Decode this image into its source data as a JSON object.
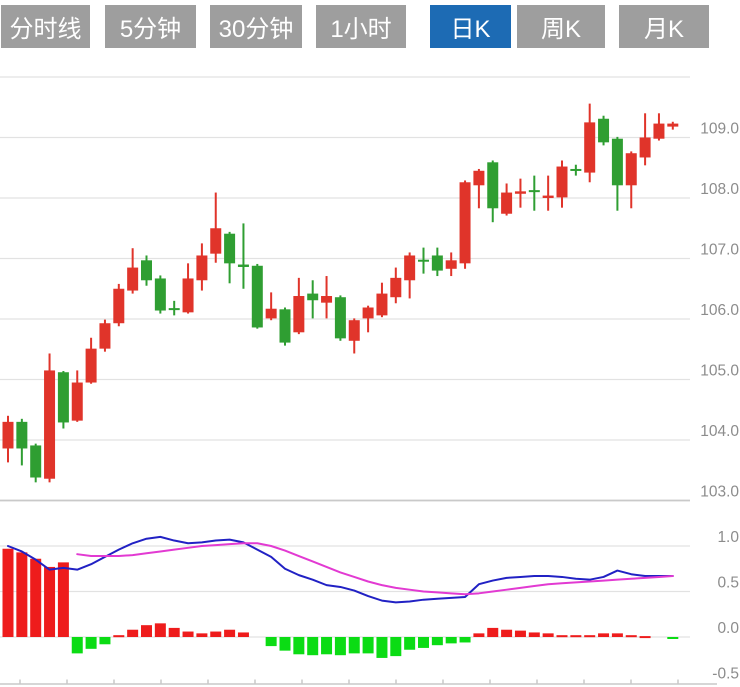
{
  "tabs": [
    {
      "label": "分时线",
      "active": false
    },
    {
      "label": "5分钟",
      "active": false
    },
    {
      "label": "30分钟",
      "active": false
    },
    {
      "label": "1小时",
      "active": false
    },
    {
      "label": "日K",
      "active": true
    },
    {
      "label": "周K",
      "active": false
    },
    {
      "label": "月K",
      "active": false
    }
  ],
  "colors": {
    "tab_inactive": "#9e9e9e",
    "tab_active": "#1d6bb4",
    "tab_text": "#ffffff",
    "up_red": "#e0342a",
    "down_green": "#2f9e32",
    "macd_up_red": "#ee1c1c",
    "macd_down_green": "#0bdc14",
    "dif_line_blue": "#2121c4",
    "dea_line_magenta": "#e23ad2",
    "grid": "#e2e2e2",
    "grid_dark": "#c9c9c9",
    "axis_label": "#8c8c8c",
    "background": "#ffffff"
  },
  "chart_data": {
    "type": "candlestick",
    "title": "",
    "legend": "none",
    "x_axis": {
      "labels_visible": false,
      "tick_count": 15
    },
    "price_axis": {
      "side": "right",
      "labels": [
        "109.0",
        "108.0",
        "107.0",
        "106.0",
        "105.0",
        "104.0",
        "103.0"
      ],
      "values": [
        109,
        108,
        107,
        106,
        105,
        104,
        103
      ],
      "extra_unlabeled_gridline": 110,
      "ylim": [
        102.7,
        110.3
      ]
    },
    "macd_axis": {
      "side": "right",
      "labels": [
        "1.0",
        "0.5",
        "0.0",
        "-0.5"
      ],
      "values": [
        1.0,
        0.5,
        0.0,
        -0.5
      ],
      "ylim": [
        -0.55,
        1.25
      ]
    },
    "candles": [
      {
        "o": 103.86,
        "h": 104.4,
        "l": 103.63,
        "c": 104.3,
        "d": "up"
      },
      {
        "o": 104.3,
        "h": 104.35,
        "l": 103.58,
        "c": 103.86,
        "d": "down"
      },
      {
        "o": 103.91,
        "h": 103.94,
        "l": 103.3,
        "c": 103.38,
        "d": "down"
      },
      {
        "o": 103.36,
        "h": 105.43,
        "l": 103.3,
        "c": 105.15,
        "d": "up"
      },
      {
        "o": 105.12,
        "h": 105.14,
        "l": 104.19,
        "c": 104.29,
        "d": "down"
      },
      {
        "o": 104.32,
        "h": 105.15,
        "l": 104.3,
        "c": 104.95,
        "d": "up"
      },
      {
        "o": 104.95,
        "h": 105.69,
        "l": 104.93,
        "c": 105.51,
        "d": "up"
      },
      {
        "o": 105.51,
        "h": 105.99,
        "l": 105.46,
        "c": 105.93,
        "d": "up"
      },
      {
        "o": 105.93,
        "h": 106.58,
        "l": 105.88,
        "c": 106.5,
        "d": "up"
      },
      {
        "o": 106.47,
        "h": 107.17,
        "l": 106.42,
        "c": 106.85,
        "d": "up"
      },
      {
        "o": 106.97,
        "h": 107.05,
        "l": 106.55,
        "c": 106.64,
        "d": "down"
      },
      {
        "o": 106.67,
        "h": 106.72,
        "l": 106.09,
        "c": 106.14,
        "d": "down"
      },
      {
        "o": 106.18,
        "h": 106.3,
        "l": 106.06,
        "c": 106.16,
        "d": "down"
      },
      {
        "o": 106.11,
        "h": 106.92,
        "l": 106.09,
        "c": 106.67,
        "d": "up"
      },
      {
        "o": 106.64,
        "h": 107.25,
        "l": 106.47,
        "c": 107.05,
        "d": "up"
      },
      {
        "o": 107.08,
        "h": 108.09,
        "l": 106.93,
        "c": 107.5,
        "d": "up"
      },
      {
        "o": 107.41,
        "h": 107.44,
        "l": 106.59,
        "c": 106.92,
        "d": "down"
      },
      {
        "o": 106.9,
        "h": 107.58,
        "l": 106.5,
        "c": 106.86,
        "d": "down"
      },
      {
        "o": 106.88,
        "h": 106.91,
        "l": 105.84,
        "c": 105.86,
        "d": "down"
      },
      {
        "o": 106.01,
        "h": 106.44,
        "l": 105.98,
        "c": 106.17,
        "d": "up"
      },
      {
        "o": 106.16,
        "h": 106.19,
        "l": 105.56,
        "c": 105.61,
        "d": "down"
      },
      {
        "o": 105.78,
        "h": 106.68,
        "l": 105.75,
        "c": 106.38,
        "d": "up"
      },
      {
        "o": 106.42,
        "h": 106.64,
        "l": 106.01,
        "c": 106.31,
        "d": "down"
      },
      {
        "o": 106.27,
        "h": 106.71,
        "l": 106.01,
        "c": 106.38,
        "d": "up"
      },
      {
        "o": 106.36,
        "h": 106.39,
        "l": 105.64,
        "c": 105.68,
        "d": "down"
      },
      {
        "o": 105.64,
        "h": 106.01,
        "l": 105.43,
        "c": 105.98,
        "d": "up"
      },
      {
        "o": 106.01,
        "h": 106.22,
        "l": 105.78,
        "c": 106.19,
        "d": "up"
      },
      {
        "o": 106.06,
        "h": 106.6,
        "l": 106.03,
        "c": 106.42,
        "d": "up"
      },
      {
        "o": 106.36,
        "h": 106.85,
        "l": 106.26,
        "c": 106.68,
        "d": "up"
      },
      {
        "o": 106.64,
        "h": 107.1,
        "l": 106.34,
        "c": 107.05,
        "d": "up"
      },
      {
        "o": 106.98,
        "h": 107.18,
        "l": 106.75,
        "c": 106.96,
        "d": "down"
      },
      {
        "o": 107.05,
        "h": 107.18,
        "l": 106.71,
        "c": 106.8,
        "d": "down"
      },
      {
        "o": 106.83,
        "h": 107.1,
        "l": 106.71,
        "c": 106.97,
        "d": "up"
      },
      {
        "o": 106.92,
        "h": 108.29,
        "l": 106.83,
        "c": 108.26,
        "d": "up"
      },
      {
        "o": 108.21,
        "h": 108.48,
        "l": 107.83,
        "c": 108.45,
        "d": "up"
      },
      {
        "o": 108.59,
        "h": 108.62,
        "l": 107.6,
        "c": 107.83,
        "d": "down"
      },
      {
        "o": 107.74,
        "h": 108.24,
        "l": 107.71,
        "c": 108.09,
        "d": "up"
      },
      {
        "o": 108.07,
        "h": 108.32,
        "l": 107.84,
        "c": 108.11,
        "d": "up"
      },
      {
        "o": 108.13,
        "h": 108.37,
        "l": 107.79,
        "c": 108.1,
        "d": "down"
      },
      {
        "o": 108.0,
        "h": 108.37,
        "l": 107.79,
        "c": 108.04,
        "d": "up"
      },
      {
        "o": 108.01,
        "h": 108.62,
        "l": 107.84,
        "c": 108.52,
        "d": "up"
      },
      {
        "o": 108.48,
        "h": 108.55,
        "l": 108.37,
        "c": 108.45,
        "d": "down"
      },
      {
        "o": 108.42,
        "h": 109.56,
        "l": 108.26,
        "c": 109.25,
        "d": "up"
      },
      {
        "o": 109.31,
        "h": 109.36,
        "l": 108.87,
        "c": 108.92,
        "d": "down"
      },
      {
        "o": 108.98,
        "h": 109.01,
        "l": 107.79,
        "c": 108.21,
        "d": "down"
      },
      {
        "o": 108.21,
        "h": 108.77,
        "l": 107.83,
        "c": 108.74,
        "d": "up"
      },
      {
        "o": 108.67,
        "h": 109.4,
        "l": 108.54,
        "c": 109.0,
        "d": "up"
      },
      {
        "o": 108.98,
        "h": 109.4,
        "l": 108.95,
        "c": 109.23,
        "d": "up"
      },
      {
        "o": 109.18,
        "h": 109.26,
        "l": 109.13,
        "c": 109.23,
        "d": "up"
      }
    ],
    "macd": {
      "histogram": [
        0.97,
        0.93,
        0.86,
        0.77,
        0.82,
        -0.18,
        -0.13,
        -0.08,
        0.02,
        0.08,
        0.13,
        0.15,
        0.1,
        0.06,
        0.04,
        0.06,
        0.08,
        0.05,
        0.0,
        -0.1,
        -0.15,
        -0.19,
        -0.2,
        -0.19,
        -0.2,
        -0.18,
        -0.18,
        -0.23,
        -0.21,
        -0.14,
        -0.12,
        -0.09,
        -0.07,
        -0.06,
        0.04,
        0.1,
        0.08,
        0.07,
        0.05,
        0.04,
        0.02,
        0.02,
        0.02,
        0.04,
        0.04,
        0.02,
        0.01,
        0.0,
        -0.01
      ],
      "dif": [
        1.0,
        0.94,
        0.85,
        0.74,
        0.76,
        0.74,
        0.8,
        0.88,
        0.96,
        1.03,
        1.08,
        1.1,
        1.06,
        1.03,
        1.04,
        1.06,
        1.07,
        1.04,
        0.96,
        0.88,
        0.75,
        0.68,
        0.63,
        0.57,
        0.55,
        0.51,
        0.45,
        0.4,
        0.38,
        0.39,
        0.41,
        0.42,
        0.43,
        0.44,
        0.58,
        0.62,
        0.65,
        0.66,
        0.67,
        0.67,
        0.66,
        0.64,
        0.63,
        0.66,
        0.73,
        0.69,
        0.67,
        0.67,
        0.67
      ],
      "dea_start_index": 5,
      "dea": [
        0.91,
        0.89,
        0.89,
        0.89,
        0.9,
        0.92,
        0.94,
        0.96,
        0.98,
        1.0,
        1.01,
        1.02,
        1.03,
        1.03,
        1.0,
        0.95,
        0.89,
        0.83,
        0.77,
        0.71,
        0.66,
        0.61,
        0.57,
        0.54,
        0.52,
        0.5,
        0.49,
        0.48,
        0.47,
        0.48,
        0.5,
        0.52,
        0.54,
        0.56,
        0.58,
        0.59,
        0.6,
        0.61,
        0.62,
        0.63,
        0.64,
        0.65,
        0.66,
        0.67
      ]
    }
  }
}
